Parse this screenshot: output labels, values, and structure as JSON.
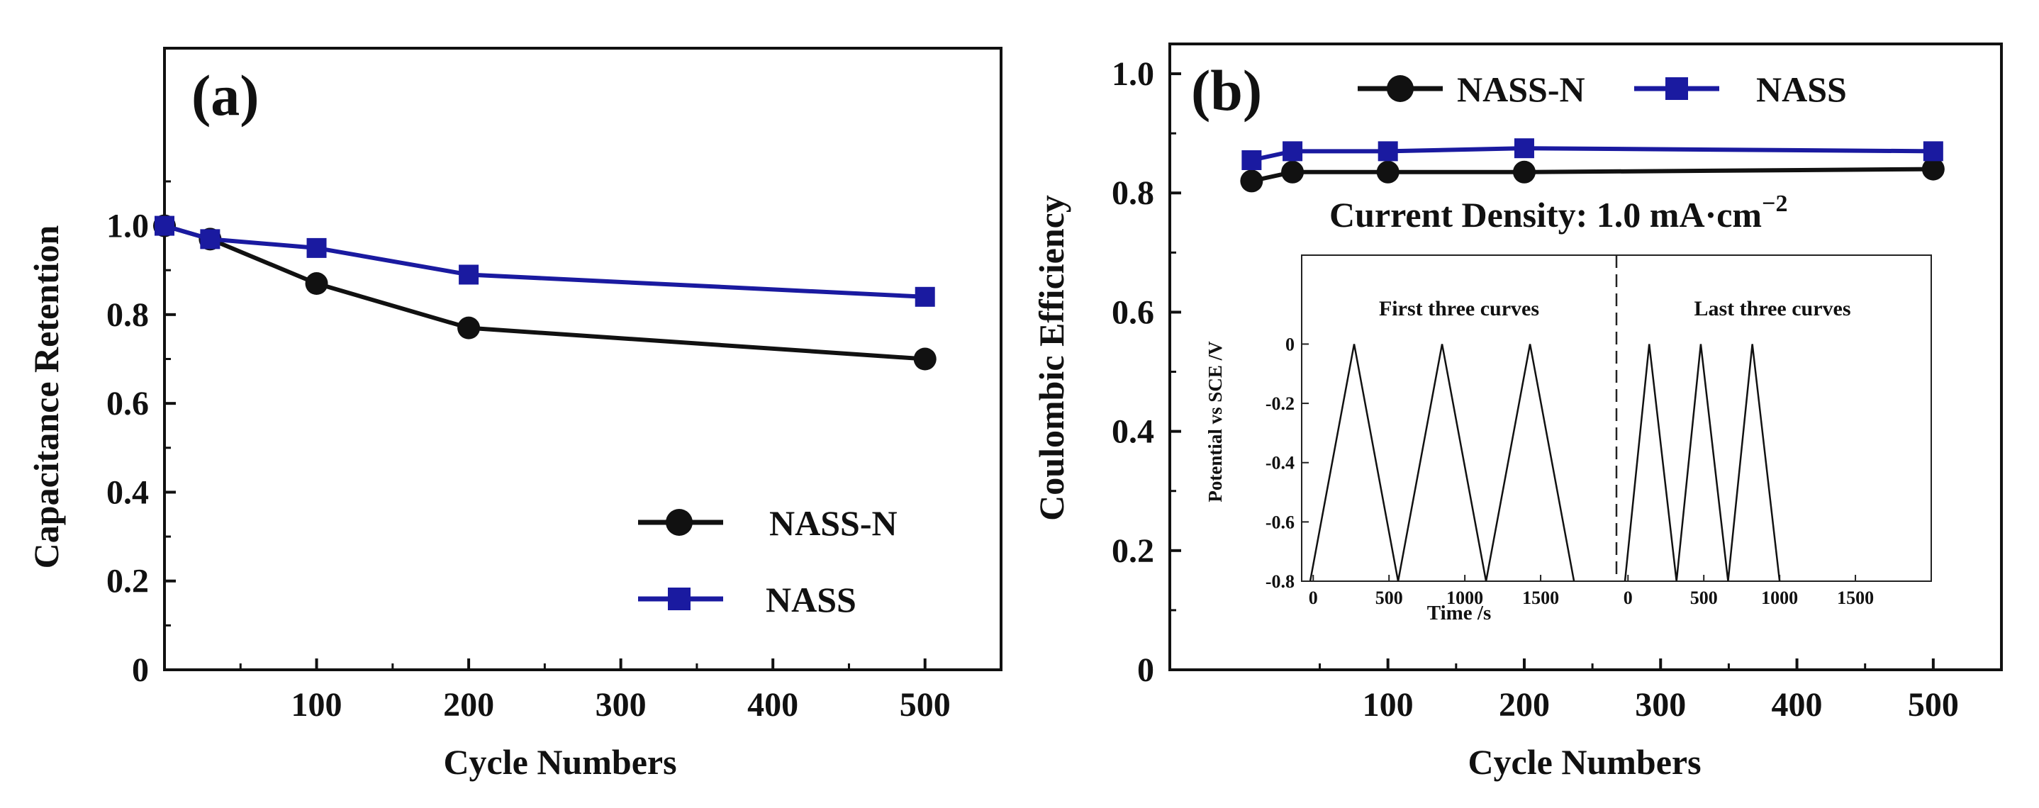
{
  "chart_data": [
    {
      "id": "a",
      "type": "line",
      "panel_label": "(a)",
      "title": "",
      "xlabel": "Cycle Numbers",
      "ylabel": "Capacitance Retention",
      "xlim": [
        0,
        550
      ],
      "ylim": [
        0,
        1.4
      ],
      "xticks": [
        100,
        200,
        300,
        400,
        500
      ],
      "xtick_labels": [
        "100",
        "200",
        "300",
        "400",
        "500"
      ],
      "yticks": [
        0,
        0.2,
        0.4,
        0.6,
        0.8,
        1.0
      ],
      "ytick_labels": [
        "0",
        "0.2",
        "0.4",
        "0.6",
        "0.8",
        "1.0"
      ],
      "grid": false,
      "legend_position": "bottom-right",
      "series": [
        {
          "name": "NASS-N",
          "marker": "circle",
          "color": "#111111",
          "x": [
            0,
            30,
            100,
            200,
            500
          ],
          "y": [
            1.0,
            0.97,
            0.87,
            0.77,
            0.7
          ]
        },
        {
          "name": "NASS",
          "marker": "square",
          "color": "#1a1aa0",
          "x": [
            0,
            30,
            100,
            200,
            500
          ],
          "y": [
            1.0,
            0.97,
            0.95,
            0.89,
            0.84
          ]
        }
      ]
    },
    {
      "id": "b",
      "type": "line",
      "panel_label": "(b)",
      "title": "",
      "xlabel": "Cycle Numbers",
      "ylabel": "Coulombic Efficiency",
      "xlim": [
        -60,
        550
      ],
      "ylim": [
        0,
        1.05
      ],
      "xticks": [
        100,
        200,
        300,
        400,
        500
      ],
      "xtick_labels": [
        "100",
        "200",
        "300",
        "400",
        "500"
      ],
      "yticks": [
        0,
        0.2,
        0.4,
        0.6,
        0.8,
        1.0
      ],
      "ytick_labels": [
        "0",
        "0.2",
        "0.4",
        "0.6",
        "0.8",
        "1.0"
      ],
      "grid": false,
      "legend_position": "top",
      "annotation": "Current Density: 1.0 mA·cm",
      "annotation_sup": "−2",
      "series": [
        {
          "name": "NASS-N",
          "marker": "circle",
          "color": "#111111",
          "x": [
            0,
            30,
            100,
            200,
            500
          ],
          "y": [
            0.82,
            0.835,
            0.835,
            0.835,
            0.84
          ]
        },
        {
          "name": "NASS",
          "marker": "square",
          "color": "#1a1aa0",
          "x": [
            0,
            30,
            100,
            200,
            500
          ],
          "y": [
            0.855,
            0.87,
            0.87,
            0.875,
            0.87
          ]
        }
      ],
      "inset": {
        "type": "line",
        "ylabel": "Potential vs SCE /V",
        "xlabel": "Time /s",
        "ylim": [
          -0.8,
          0.3
        ],
        "yticks": [
          0,
          -0.2,
          -0.4,
          -0.6,
          -0.8
        ],
        "ytick_labels": [
          "0",
          "-0.2",
          "-0.4",
          "-0.6",
          "-0.8"
        ],
        "panels": [
          {
            "label": "First three curves",
            "xlim": [
              -20,
              2000
            ],
            "xticks": [
              0,
              500,
              1000,
              1500
            ],
            "xtick_labels": [
              "0",
              "500",
              "1000",
              "1500"
            ],
            "x": [
              -20,
              270,
              560,
              850,
              1140,
              1430,
              1720
            ],
            "y": [
              -0.8,
              0.0,
              -0.8,
              0.0,
              -0.8,
              0.0,
              -0.8
            ]
          },
          {
            "label": "Last three curves",
            "xlim": [
              -20,
              2000
            ],
            "xticks": [
              0,
              500,
              1000,
              1500
            ],
            "xtick_labels": [
              "0",
              "500",
              "1000",
              "1500"
            ],
            "x": [
              -20,
              140,
              320,
              480,
              660,
              820,
              1000
            ],
            "y": [
              -0.8,
              0.0,
              -0.8,
              0.0,
              -0.8,
              0.0,
              -0.8
            ]
          }
        ]
      }
    }
  ]
}
